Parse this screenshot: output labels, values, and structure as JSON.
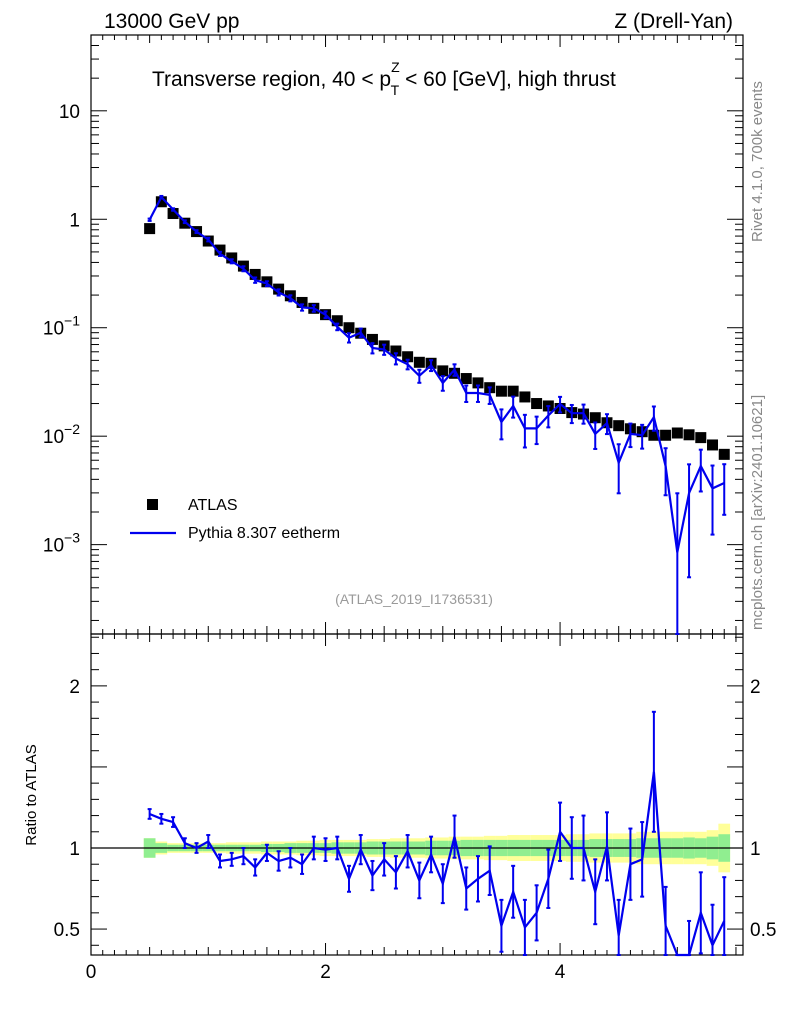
{
  "header": {
    "left": "13000 GeV pp",
    "right": "Z (Drell-Yan)"
  },
  "side_labels": {
    "rivet": "Rivet 4.1.0,  700k events",
    "mcplots": "mcplots.cern.ch [arXiv:2401.10621]"
  },
  "chart_data": [
    {
      "type": "scatter",
      "panel": "main",
      "title": "Transverse region, 40 < pT^Z < 60 [GeV], high thrust",
      "title_parts": {
        "pre": "Transverse region, 40 < p",
        "sup": "Z",
        "sub": "T",
        "post": " < 60 [GeV], high thrust"
      },
      "analysis_id": "(ATLAS_2019_I1736531)",
      "yscale": "log",
      "xlim": [
        0,
        5.56
      ],
      "ylim": [
        0.00015,
        50
      ],
      "y_ticks": [
        {
          "v": 10,
          "label": "10",
          "exp": ""
        },
        {
          "v": 1,
          "label": "1",
          "exp": ""
        },
        {
          "v": 0.1,
          "label": "10",
          "exp": "−1"
        },
        {
          "v": 0.01,
          "label": "10",
          "exp": "−2"
        },
        {
          "v": 0.001,
          "label": "10",
          "exp": "−3"
        }
      ],
      "legend": {
        "atlas": "ATLAS",
        "pythia": "Pythia 8.307 eetherm"
      },
      "x": [
        0.5,
        0.6,
        0.7,
        0.8,
        0.9,
        1.0,
        1.1,
        1.2,
        1.3,
        1.4,
        1.5,
        1.6,
        1.7,
        1.8,
        1.9,
        2.0,
        2.1,
        2.2,
        2.3,
        2.4,
        2.5,
        2.6,
        2.7,
        2.8,
        2.9,
        3.0,
        3.1,
        3.2,
        3.3,
        3.4,
        3.5,
        3.6,
        3.7,
        3.8,
        3.9,
        4.0,
        4.1,
        4.2,
        4.3,
        4.4,
        4.5,
        4.6,
        4.7,
        4.8,
        4.9,
        5.0,
        5.1,
        5.2,
        5.3,
        5.4
      ],
      "series": [
        {
          "name": "ATLAS",
          "color": "#000000",
          "marker": "square",
          "values": [
            0.82,
            1.45,
            1.13,
            0.92,
            0.77,
            0.63,
            0.52,
            0.44,
            0.37,
            0.31,
            0.265,
            0.227,
            0.197,
            0.171,
            0.151,
            0.132,
            0.116,
            0.1,
            0.089,
            0.078,
            0.068,
            0.061,
            0.054,
            0.048,
            0.047,
            0.04,
            0.038,
            0.034,
            0.031,
            0.028,
            0.026,
            0.026,
            0.023,
            0.02,
            0.019,
            0.018,
            0.0165,
            0.016,
            0.0148,
            0.0133,
            0.0125,
            0.0117,
            0.011,
            0.0102,
            0.0102,
            0.0107,
            0.0103,
            0.0097,
            0.0083,
            0.0068
          ]
        },
        {
          "name": "Pythia 8.307 eetherm",
          "color": "#0000ee",
          "marker": "line",
          "values": [
            0.99,
            1.6,
            1.23,
            0.95,
            0.77,
            0.65,
            0.48,
            0.41,
            0.35,
            0.275,
            0.255,
            0.212,
            0.187,
            0.154,
            0.151,
            0.132,
            0.102,
            0.081,
            0.09,
            0.065,
            0.063,
            0.052,
            0.046,
            0.036,
            0.045,
            0.031,
            0.041,
            0.025,
            0.025,
            0.024,
            0.0135,
            0.019,
            0.0118,
            0.0118,
            0.0155,
            0.0198,
            0.0163,
            0.0163,
            0.0105,
            0.0132,
            0.0057,
            0.0105,
            0.0102,
            0.015,
            0.0053,
            0.00085,
            0.003,
            0.0053,
            0.0033,
            0.0037
          ]
        }
      ]
    },
    {
      "type": "line",
      "panel": "ratio",
      "ylabel": "Ratio to ATLAS",
      "xlim": [
        0,
        5.56
      ],
      "ylim": [
        0.34,
        2.32
      ],
      "y_ticks": [
        {
          "v": 2,
          "label": "2"
        },
        {
          "v": 1,
          "label": "1"
        },
        {
          "v": 0.5,
          "label": "0.5"
        }
      ],
      "x_ticks": [
        {
          "v": 0,
          "label": "0"
        },
        {
          "v": 2,
          "label": "2"
        },
        {
          "v": 4,
          "label": "4"
        }
      ],
      "reference_line": 1,
      "bands": {
        "inner_color": "#90ee90",
        "outer_color": "#ffff99",
        "inner_half_width": [
          0.06,
          0.03,
          0.02,
          0.02,
          0.02,
          0.02,
          0.02,
          0.02,
          0.02,
          0.02,
          0.025,
          0.025,
          0.03,
          0.03,
          0.03,
          0.03,
          0.035,
          0.035,
          0.035,
          0.04,
          0.04,
          0.04,
          0.04,
          0.04,
          0.045,
          0.045,
          0.045,
          0.05,
          0.05,
          0.05,
          0.05,
          0.05,
          0.05,
          0.05,
          0.05,
          0.05,
          0.05,
          0.05,
          0.055,
          0.055,
          0.055,
          0.055,
          0.06,
          0.06,
          0.06,
          0.06,
          0.065,
          0.06,
          0.07,
          0.085
        ],
        "outer_half_width": [
          0.06,
          0.04,
          0.03,
          0.03,
          0.03,
          0.03,
          0.03,
          0.035,
          0.035,
          0.035,
          0.04,
          0.04,
          0.04,
          0.045,
          0.045,
          0.05,
          0.05,
          0.05,
          0.05,
          0.055,
          0.055,
          0.06,
          0.06,
          0.06,
          0.065,
          0.065,
          0.07,
          0.07,
          0.07,
          0.075,
          0.075,
          0.08,
          0.08,
          0.08,
          0.08,
          0.08,
          0.085,
          0.085,
          0.09,
          0.09,
          0.09,
          0.09,
          0.1,
          0.1,
          0.1,
          0.1,
          0.1,
          0.1,
          0.11,
          0.15
        ]
      },
      "series": [
        {
          "name": "Pythia 8.307 eetherm / ATLAS",
          "color": "#0000ee",
          "values": [
            1.21,
            1.18,
            1.16,
            1.03,
            1.0,
            1.04,
            0.92,
            0.93,
            0.95,
            0.88,
            0.97,
            0.92,
            0.94,
            0.9,
            1.0,
            0.99,
            1.0,
            0.81,
            0.99,
            0.83,
            0.93,
            0.85,
            0.98,
            0.8,
            0.96,
            0.78,
            1.07,
            0.75,
            0.81,
            0.86,
            0.52,
            0.73,
            0.51,
            0.6,
            0.81,
            1.1,
            1.0,
            1.0,
            0.73,
            1.01,
            0.46,
            0.9,
            0.93,
            1.47,
            0.52,
            0.08,
            0.3,
            0.6,
            0.4,
            0.55
          ],
          "errors": [
            0.03,
            0.03,
            0.03,
            0.03,
            0.03,
            0.04,
            0.04,
            0.04,
            0.05,
            0.05,
            0.05,
            0.06,
            0.06,
            0.06,
            0.07,
            0.07,
            0.07,
            0.08,
            0.09,
            0.09,
            0.1,
            0.1,
            0.1,
            0.11,
            0.11,
            0.12,
            0.13,
            0.13,
            0.14,
            0.15,
            0.16,
            0.16,
            0.17,
            0.17,
            0.18,
            0.18,
            0.19,
            0.2,
            0.2,
            0.21,
            0.22,
            0.22,
            0.23,
            0.37,
            0.24,
            0.2,
            0.25,
            0.25,
            0.25,
            0.27
          ]
        }
      ]
    }
  ]
}
